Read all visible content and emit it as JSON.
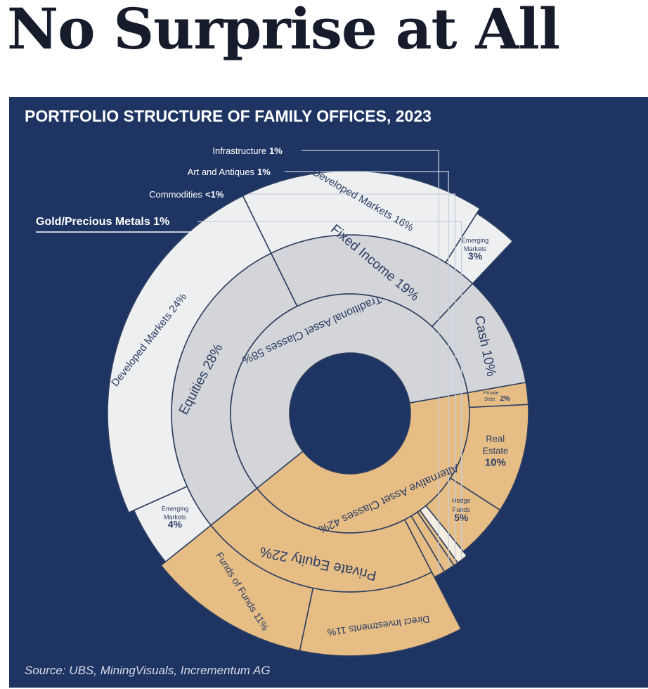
{
  "headline": "No Surprise at All",
  "chart_data": {
    "type": "sunburst",
    "title": "PORTFOLIO STRUCTURE OF FAMILY OFFICES, 2023",
    "source": "Source: UBS, MiningVisuals, Incrementum AG",
    "colors": {
      "background": "#1e3462",
      "alternative": "#e6bd85",
      "traditional": "#d3d5d9",
      "traditional_outer": "#eeeff1",
      "text": "#2c3e64"
    },
    "categories": [
      {
        "name": "Alternative Asset Classes",
        "value": 42
      },
      {
        "name": "Traditional Asset Classes",
        "value": 58
      }
    ],
    "subcategories": [
      {
        "parent": "Alternative Asset Classes",
        "name": "Private Debt",
        "value": 2
      },
      {
        "parent": "Alternative Asset Classes",
        "name": "Real Estate",
        "value": 10
      },
      {
        "parent": "Alternative Asset Classes",
        "name": "Hedge Funds",
        "value": 5
      },
      {
        "parent": "Alternative Asset Classes",
        "name": "Gold/Precious Metals",
        "value": 1
      },
      {
        "parent": "Alternative Asset Classes",
        "name": "Commodities",
        "value": "<1"
      },
      {
        "parent": "Alternative Asset Classes",
        "name": "Art and Antiques",
        "value": 1
      },
      {
        "parent": "Alternative Asset Classes",
        "name": "Infrastructure",
        "value": 1
      },
      {
        "parent": "Alternative Asset Classes",
        "name": "Private Equity",
        "value": 22
      },
      {
        "parent": "Traditional Asset Classes",
        "name": "Equities",
        "value": 28
      },
      {
        "parent": "Traditional Asset Classes",
        "name": "Fixed Income",
        "value": 19
      },
      {
        "parent": "Traditional Asset Classes",
        "name": "Cash",
        "value": 10
      }
    ],
    "details": [
      {
        "parent": "Private Equity",
        "name": "Direct Investments",
        "value": 11
      },
      {
        "parent": "Private Equity",
        "name": "Funds of Funds",
        "value": 11
      },
      {
        "parent": "Equities",
        "name": "Emerging Markets",
        "value": 4
      },
      {
        "parent": "Equities",
        "name": "Developed Markets",
        "value": 24
      },
      {
        "parent": "Fixed Income",
        "name": "Developed Markets",
        "value": 16
      },
      {
        "parent": "Fixed Income",
        "name": "Emerging Markets",
        "value": 3
      }
    ],
    "labels": {
      "inner_alt": "Alternative Asset Classes 42%",
      "inner_trad": "Traditional Asset Classes 58%",
      "pe": "Private Equity 22%",
      "eq": "Equities 28%",
      "fi": "Fixed Income 19%",
      "cash": "Cash 10%",
      "re_1": "Real",
      "re_2": "Estate",
      "re_3": "10%",
      "hf_1": "Hedge",
      "hf_2": "Funds",
      "hf_3": "5%",
      "pd_1": "Private",
      "pd_2": "Debt",
      "pd_3": "2%",
      "di": "Direct Investments 11%",
      "fof": "Funds of Funds 11%",
      "em_eq_1": "Emerging",
      "em_eq_2": "Markets",
      "em_eq_3": "4%",
      "dm_eq": "Developed Markets 24%",
      "dm_fi": "Developed Markets 16%",
      "em_fi_1": "Emerging",
      "em_fi_2": "Markets",
      "em_fi_3": "3%",
      "infra": "Infrastructure",
      "infra_v": "1%",
      "art": "Art and Antiques",
      "art_v": "1%",
      "comm": "Commodities",
      "comm_v": "<1%",
      "gold": "Gold/Precious Metals 1%"
    }
  }
}
